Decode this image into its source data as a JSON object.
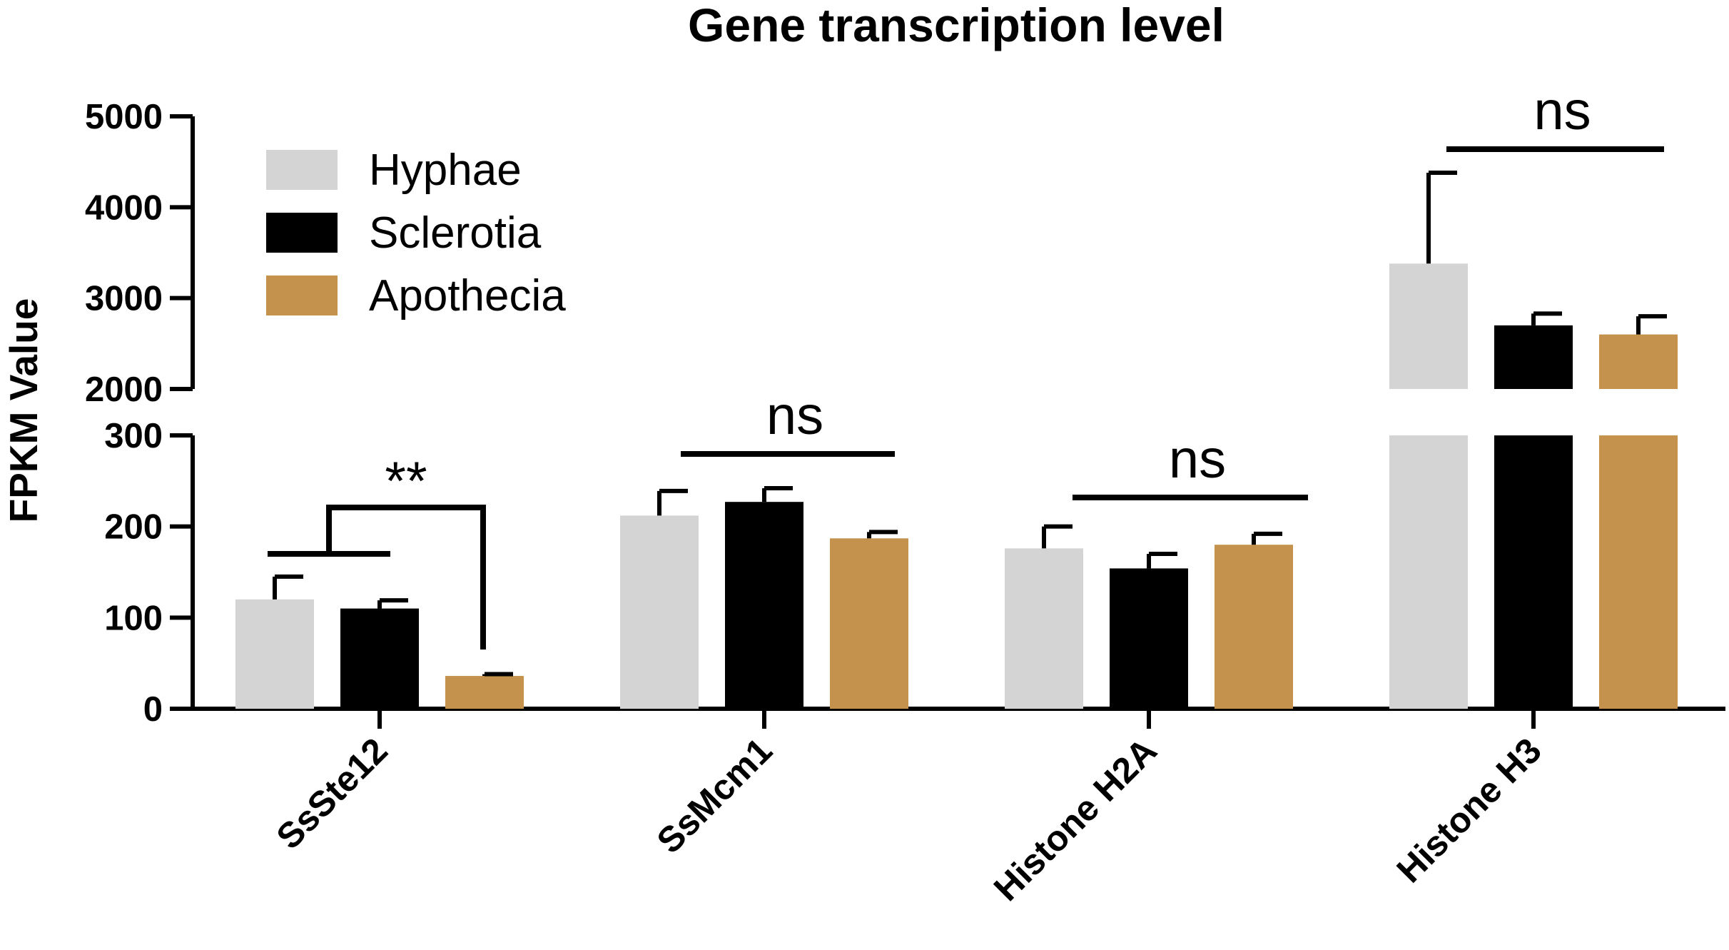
{
  "chart_data": {
    "type": "bar",
    "title": "Gene transcription level",
    "ylabel": "FPKM Value",
    "xlabel": "",
    "categories": [
      "SsSte12",
      "SsMcm1",
      "Histone H2A",
      "Histone H3"
    ],
    "series": [
      {
        "name": "Hyphae",
        "color": "#d4d4d4",
        "values": [
          120,
          212,
          176,
          3380
        ],
        "errors": [
          25,
          27,
          24,
          1000
        ]
      },
      {
        "name": "Sclerotia",
        "color": "#000000",
        "values": [
          110,
          227,
          154,
          2700
        ],
        "errors": [
          9,
          15,
          16,
          130
        ]
      },
      {
        "name": "Apothecia",
        "color": "#c4924d",
        "values": [
          36,
          187,
          180,
          2600
        ],
        "errors": [
          2,
          7,
          12,
          200
        ]
      }
    ],
    "y_axis": {
      "broken": true,
      "lower_segment": {
        "range": [
          0,
          300
        ],
        "ticks": [
          "0",
          "100",
          "200",
          "300"
        ]
      },
      "upper_segment": {
        "range": [
          2000,
          5000
        ],
        "ticks": [
          "2000",
          "3000",
          "4000",
          "5000"
        ]
      }
    },
    "significance": [
      {
        "category": "SsSte12",
        "label": "**"
      },
      {
        "category": "SsMcm1",
        "label": "ns"
      },
      {
        "category": "Histone H2A",
        "label": "ns"
      },
      {
        "category": "Histone H3",
        "label": "ns"
      }
    ],
    "legend_position": "top-left",
    "grid": false
  }
}
